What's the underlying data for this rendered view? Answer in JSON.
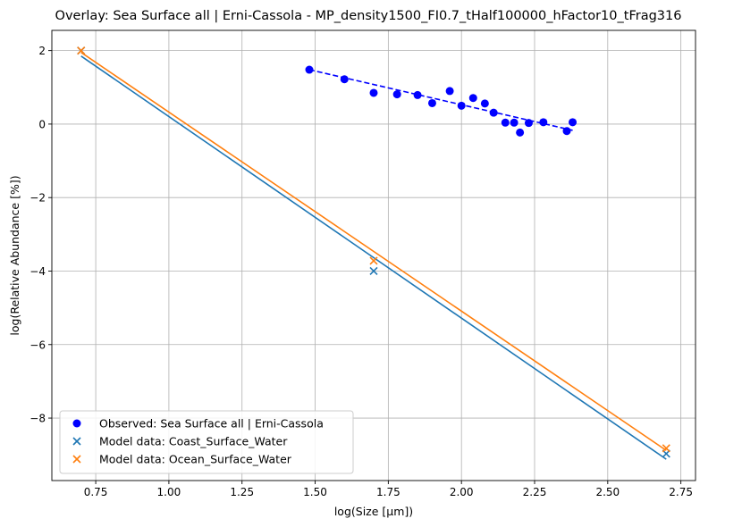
{
  "chart_data": {
    "type": "scatter",
    "title": "Overlay: Sea Surface all | Erni-Cassola - MP_density1500_FI0.7_tHalf100000_hFactor10_tFrag316",
    "xlabel": "log(Size [µm])",
    "ylabel": "log(Relative Abundance [%])",
    "xlim": [
      0.6,
      2.8
    ],
    "ylim": [
      -9.7,
      2.55
    ],
    "xticks": [
      0.75,
      1.0,
      1.25,
      1.5,
      1.75,
      2.0,
      2.25,
      2.5,
      2.75
    ],
    "xtick_labels": [
      "0.75",
      "1.00",
      "1.25",
      "1.50",
      "1.75",
      "2.00",
      "2.25",
      "2.50",
      "2.75"
    ],
    "yticks": [
      2,
      0,
      -2,
      -4,
      -6,
      -8
    ],
    "ytick_labels": [
      "2",
      "0",
      "−2",
      "−4",
      "−6",
      "−8"
    ],
    "grid": true,
    "legend_position": "lower-left",
    "series": [
      {
        "name": "Observed: Sea Surface all | Erni-Cassola",
        "kind": "scatter",
        "marker": "circle",
        "color": "#0000ff",
        "x": [
          1.48,
          1.6,
          1.7,
          1.78,
          1.85,
          1.9,
          1.96,
          2.0,
          2.04,
          2.08,
          2.11,
          2.15,
          2.18,
          2.2,
          2.23,
          2.28,
          2.36,
          2.38
        ],
        "y": [
          1.48,
          1.22,
          0.85,
          0.81,
          0.79,
          0.57,
          0.9,
          0.5,
          0.71,
          0.56,
          0.31,
          0.04,
          0.04,
          -0.23,
          0.03,
          0.05,
          -0.19,
          0.05
        ]
      },
      {
        "name": "Model data: Coast_Surface_Water",
        "kind": "scatter",
        "marker": "x",
        "color": "#1f77b4",
        "x": [
          0.7,
          1.7,
          2.7
        ],
        "y": [
          2.0,
          -4.0,
          -8.97
        ]
      },
      {
        "name": "Model data: Ocean_Surface_Water",
        "kind": "scatter",
        "marker": "x",
        "color": "#ff7f0e",
        "x": [
          0.7,
          1.7,
          2.7
        ],
        "y": [
          2.0,
          -3.72,
          -8.82
        ]
      }
    ],
    "fit_lines": [
      {
        "series": "Observed: Sea Surface all | Erni-Cassola",
        "color": "#0000ff",
        "style": "dashed",
        "x": [
          1.48,
          2.38
        ],
        "y": [
          1.48,
          -0.17
        ]
      },
      {
        "series": "Model data: Coast_Surface_Water",
        "color": "#1f77b4",
        "style": "solid",
        "x": [
          0.7,
          2.7
        ],
        "y": [
          1.85,
          -9.12
        ]
      },
      {
        "series": "Model data: Ocean_Surface_Water",
        "color": "#ff7f0e",
        "style": "solid",
        "x": [
          0.7,
          2.7
        ],
        "y": [
          1.95,
          -8.88
        ]
      }
    ]
  }
}
